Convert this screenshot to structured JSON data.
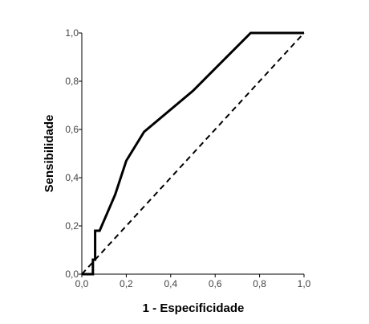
{
  "chart_data": {
    "type": "line",
    "xlabel": "1 - Especificidade",
    "ylabel": "Sensibilidade",
    "xlim": [
      0,
      1
    ],
    "ylim": [
      0,
      1
    ],
    "x_ticks": [
      "0,0",
      "0,2",
      "0,4",
      "0,6",
      "0,8",
      "1,0"
    ],
    "y_ticks": [
      "0,0",
      "0,2",
      "0,4",
      "0,6",
      "0,8",
      "1,0"
    ],
    "grid": false,
    "series": [
      {
        "style": "solid",
        "x": [
          0.0,
          0.05,
          0.05,
          0.06,
          0.06,
          0.08,
          0.15,
          0.2,
          0.28,
          0.5,
          0.76,
          1.0
        ],
        "y": [
          0.0,
          0.0,
          0.06,
          0.06,
          0.18,
          0.18,
          0.33,
          0.47,
          0.59,
          0.76,
          1.0,
          1.0
        ]
      },
      {
        "style": "dashed",
        "x": [
          0.0,
          1.0
        ],
        "y": [
          0.0,
          1.0
        ]
      }
    ]
  }
}
